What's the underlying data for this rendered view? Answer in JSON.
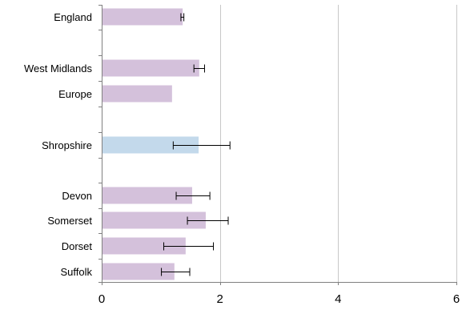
{
  "chart_data": {
    "type": "bar",
    "orientation": "horizontal",
    "title": "",
    "xlabel": "",
    "ylabel": "",
    "xlim": [
      0,
      6
    ],
    "x_ticks": [
      "0",
      "2",
      "4",
      "6"
    ],
    "grid": "vertical gridlines at x ticks",
    "legend": "none",
    "colors": {
      "default_bar": "#d4c1db",
      "highlight_bar": "#c3d9eb",
      "gridline": "#c8c8c8",
      "axis": "#808080",
      "error_bar": "#000000"
    },
    "categories": [
      "England",
      "West Midlands",
      "Europe",
      "Shropshire",
      "Devon",
      "Somerset",
      "Dorset",
      "Suffolk"
    ],
    "highlight": "Shropshire",
    "values": [
      1.37,
      1.65,
      1.19,
      1.64,
      1.53,
      1.76,
      1.42,
      1.23
    ],
    "error_low": [
      1.34,
      1.56,
      null,
      1.21,
      1.26,
      1.45,
      1.05,
      1.01
    ],
    "error_high": [
      1.39,
      1.74,
      null,
      2.17,
      1.83,
      2.14,
      1.89,
      1.49
    ]
  }
}
